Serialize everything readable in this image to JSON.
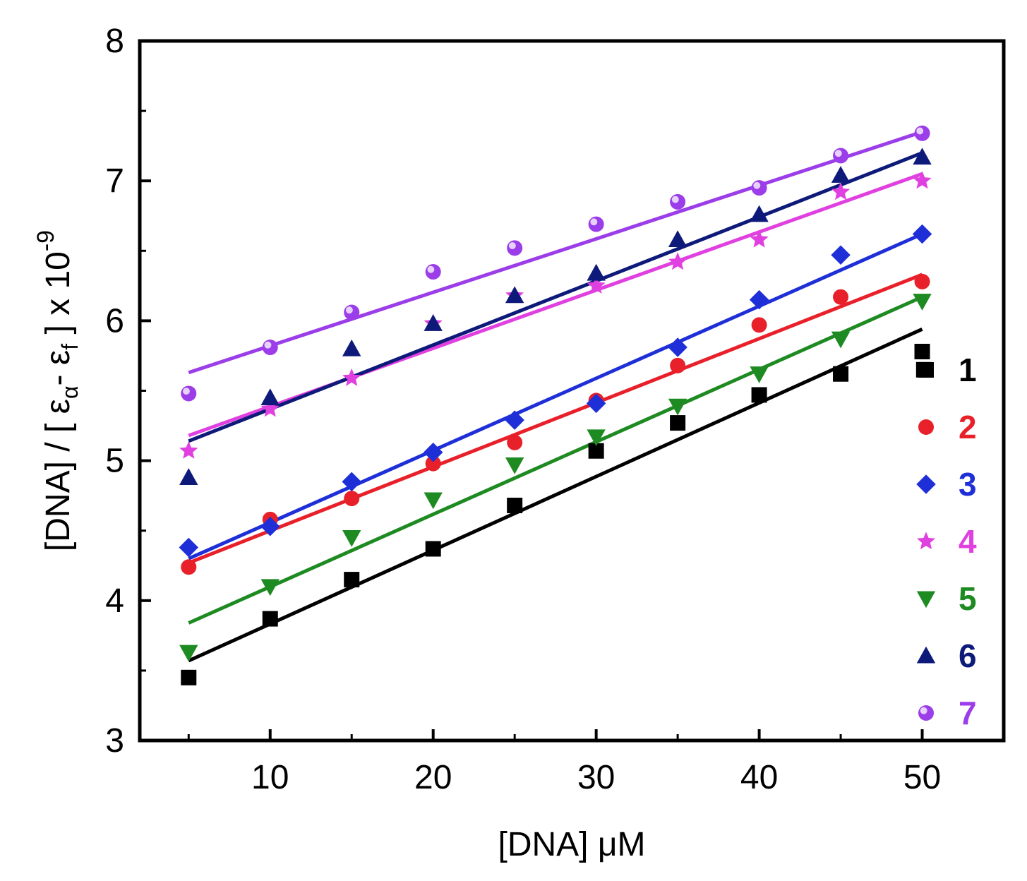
{
  "chart_data": {
    "type": "scatter",
    "title": "",
    "xlabel": "[DNA] μM",
    "ylabel": {
      "prefix": "[DNA] / [ ε",
      "sub_a": "α",
      "mid": "- ε",
      "sub_f": "f",
      "suffix": " ] x 10",
      "exp": "-9"
    },
    "xlim": [
      2,
      55
    ],
    "ylim": [
      3,
      8
    ],
    "x_ticks": [
      10,
      20,
      30,
      40,
      50
    ],
    "y_ticks": [
      3,
      4,
      5,
      6,
      7,
      8
    ],
    "x": [
      5,
      10,
      15,
      20,
      25,
      30,
      35,
      40,
      45,
      50
    ],
    "legend_position": "right",
    "series": [
      {
        "name": "1",
        "color": "#000000",
        "marker": "square",
        "values": [
          3.45,
          3.87,
          4.15,
          4.37,
          4.68,
          5.07,
          5.27,
          5.47,
          5.62,
          5.78
        ],
        "extra_points": [
          [
            50.1,
            5.65
          ]
        ],
        "fit": [
          [
            5,
            3.57
          ],
          [
            50,
            5.94
          ]
        ]
      },
      {
        "name": "2",
        "color": "#e8202a",
        "marker": "circle",
        "values": [
          4.24,
          4.58,
          4.73,
          4.98,
          5.13,
          5.43,
          5.68,
          5.97,
          6.17,
          6.28
        ],
        "fit": [
          [
            5,
            4.27
          ],
          [
            50,
            6.33
          ]
        ]
      },
      {
        "name": "3",
        "color": "#1f2fd8",
        "marker": "diamond",
        "values": [
          4.38,
          4.53,
          4.85,
          5.06,
          5.29,
          5.41,
          5.81,
          6.15,
          6.47,
          6.62
        ],
        "fit": [
          [
            5,
            4.3
          ],
          [
            50,
            6.62
          ]
        ]
      },
      {
        "name": "4",
        "color": "#e040e0",
        "marker": "star",
        "values": [
          5.07,
          5.37,
          5.59,
          5.98,
          6.18,
          6.25,
          6.42,
          6.58,
          6.92,
          7.0
        ],
        "fit": [
          [
            5,
            5.18
          ],
          [
            50,
            7.05
          ]
        ]
      },
      {
        "name": "5",
        "color": "#1e8a22",
        "marker": "triangle-down",
        "values": [
          3.63,
          4.1,
          4.45,
          4.72,
          4.97,
          5.17,
          5.39,
          5.62,
          5.87,
          6.14
        ],
        "fit": [
          [
            5,
            3.84
          ],
          [
            50,
            6.17
          ]
        ]
      },
      {
        "name": "6",
        "color": "#0e1a7a",
        "marker": "triangle-up",
        "values": [
          4.88,
          5.45,
          5.8,
          5.98,
          6.18,
          6.34,
          6.58,
          6.76,
          7.04,
          7.17
        ],
        "fit": [
          [
            5,
            5.14
          ],
          [
            50,
            7.2
          ]
        ]
      },
      {
        "name": "7",
        "color": "#9b3de8",
        "marker": "sphere",
        "values": [
          5.48,
          5.81,
          6.06,
          6.35,
          6.52,
          6.69,
          6.85,
          6.95,
          7.18,
          7.34
        ],
        "fit": [
          [
            5,
            5.63
          ],
          [
            50,
            7.35
          ]
        ]
      }
    ]
  }
}
